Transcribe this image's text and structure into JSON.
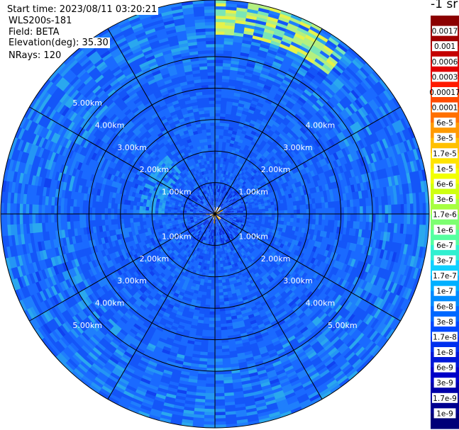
{
  "header": {
    "start_time": "Start time: 2023/08/11 03:20:21",
    "instrument": "WLS200s-181",
    "field": "Field: BETA",
    "elevation": "Elevation(deg): 35.30",
    "nrays": "NRays: 120"
  },
  "colorbar": {
    "units_label": "-1 sr",
    "colors": [
      "#8b0000",
      "#a00000",
      "#c40000",
      "#e00000",
      "#ff1a00",
      "#ff4a00",
      "#ff7000",
      "#ff9a00",
      "#ffc000",
      "#ffe400",
      "#f2ff00",
      "#cfff10",
      "#a6ff40",
      "#7dff70",
      "#55ffa0",
      "#30f0d0",
      "#10d0ff",
      "#00b0ff",
      "#008cff",
      "#0068ff",
      "#0048ff",
      "#0030ee",
      "#0018d8",
      "#0000c8",
      "#0000a8",
      "#000090",
      "#000078"
    ],
    "labels": [
      "0.0017",
      "0.001",
      "0.0006",
      "0.0003",
      "0.00017",
      "0.0001",
      "6e-5",
      "3e-5",
      "1.7e-5",
      "1e-5",
      "6e-6",
      "3e-6",
      "1.7e-6",
      "1e-6",
      "6e-7",
      "3e-7",
      "1.7e-7",
      "1e-7",
      "6e-8",
      "3e-8",
      "1.7e-8",
      "1e-8",
      "6e-9",
      "3e-9",
      "1.7e-9",
      "1e-9"
    ]
  },
  "chart_data": {
    "type": "heatmap",
    "projection": "polar (PPI scan)",
    "field": "BETA",
    "range_unit": "km",
    "range_rings_km": [
      1,
      2,
      3,
      4,
      5
    ],
    "max_range_km": 6.8,
    "n_rays": 120,
    "spoke_angles_deg": [
      0,
      30,
      60,
      90,
      120,
      150,
      180,
      210,
      240,
      270,
      300,
      330
    ],
    "ring_labels": [
      "1.00km",
      "2.00km",
      "3.00km",
      "4.00km",
      "5.00km"
    ],
    "dominant_value_range": [
      3e-08,
      1e-07
    ],
    "features": [
      {
        "description": "high backscatter arc near far edge, north-north-east",
        "value_range": [
          1e-06,
          3e-06
        ]
      },
      {
        "description": "moderate band near 2km, west-north-west",
        "value_range": [
          1.7e-07,
          3e-07
        ]
      },
      {
        "description": "near-field clutter at center",
        "value_range": [
          1e-05,
          0.0001
        ]
      }
    ]
  }
}
